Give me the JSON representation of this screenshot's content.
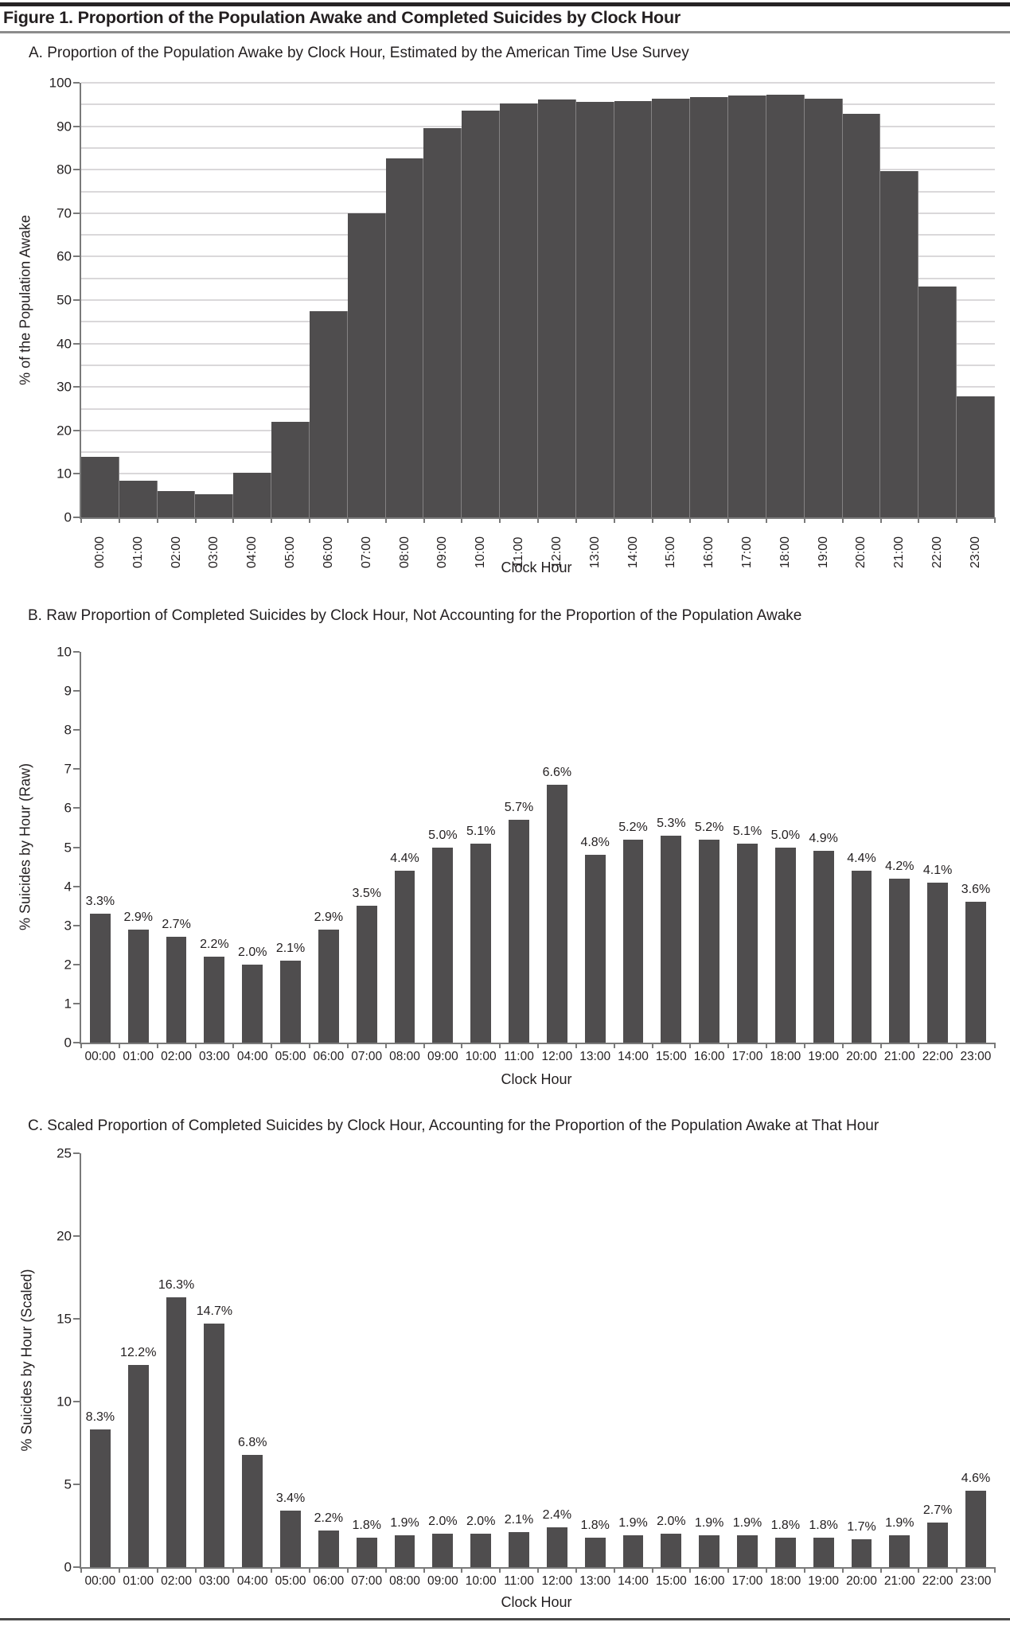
{
  "figure": {
    "title": "Figure 1. Proportion of the Population Awake and Completed Suicides by Clock Hour"
  },
  "colors": {
    "bar": "#4f4d4e",
    "grid": "#b4b0b4",
    "axis": "#7a7a7a",
    "text": "#231f20"
  },
  "chart_data": [
    {
      "id": "A",
      "type": "bar",
      "title": "A. Proportion of the Population Awake by Clock Hour, Estimated by the American Time Use Survey",
      "xlabel": "Clock Hour",
      "ylabel": "% of the Population Awake",
      "ylim": [
        0,
        100
      ],
      "yticks": [
        0,
        10,
        20,
        30,
        40,
        50,
        60,
        70,
        80,
        90,
        100
      ],
      "grid": true,
      "grid_step": 5,
      "histogram": true,
      "x_tick_rotated": true,
      "legend": "none",
      "categories": [
        "00:00",
        "01:00",
        "02:00",
        "03:00",
        "04:00",
        "05:00",
        "06:00",
        "07:00",
        "08:00",
        "09:00",
        "10:00",
        "11:00",
        "12:00",
        "13:00",
        "14:00",
        "15:00",
        "16:00",
        "17:00",
        "18:00",
        "19:00",
        "20:00",
        "21:00",
        "22:00",
        "23:00"
      ],
      "values": [
        14.0,
        8.4,
        6.0,
        5.3,
        10.3,
        22.0,
        47.4,
        70.0,
        82.6,
        89.6,
        93.6,
        95.3,
        96.1,
        95.6,
        95.7,
        96.4,
        96.7,
        97.1,
        97.3,
        96.4,
        92.8,
        79.6,
        53.2,
        27.8
      ],
      "data_labels": null
    },
    {
      "id": "B",
      "type": "bar",
      "title": "B. Raw Proportion of Completed Suicides by Clock Hour, Not Accounting for the Proportion of the Population Awake",
      "xlabel": "Clock Hour",
      "ylabel": "% Suicides by Hour (Raw)",
      "ylim": [
        0,
        10
      ],
      "yticks": [
        0,
        1,
        2,
        3,
        4,
        5,
        6,
        7,
        8,
        9,
        10
      ],
      "grid": false,
      "histogram": false,
      "x_tick_rotated": false,
      "legend": "none",
      "categories": [
        "00:00",
        "01:00",
        "02:00",
        "03:00",
        "04:00",
        "05:00",
        "06:00",
        "07:00",
        "08:00",
        "09:00",
        "10:00",
        "11:00",
        "12:00",
        "13:00",
        "14:00",
        "15:00",
        "16:00",
        "17:00",
        "18:00",
        "19:00",
        "20:00",
        "21:00",
        "22:00",
        "23:00"
      ],
      "values": [
        3.3,
        2.9,
        2.7,
        2.2,
        2.0,
        2.1,
        2.9,
        3.5,
        4.4,
        5.0,
        5.1,
        5.7,
        6.6,
        4.8,
        5.2,
        5.3,
        5.2,
        5.1,
        5.0,
        4.9,
        4.4,
        4.2,
        4.1,
        3.6
      ],
      "data_labels": [
        "3.3%",
        "2.9%",
        "2.7%",
        "2.2%",
        "2.0%",
        "2.1%",
        "2.9%",
        "3.5%",
        "4.4%",
        "5.0%",
        "5.1%",
        "5.7%",
        "6.6%",
        "4.8%",
        "5.2%",
        "5.3%",
        "5.2%",
        "5.1%",
        "5.0%",
        "4.9%",
        "4.4%",
        "4.2%",
        "4.1%",
        "3.6%"
      ]
    },
    {
      "id": "C",
      "type": "bar",
      "title": "C. Scaled Proportion of Completed Suicides by Clock Hour, Accounting for the Proportion of the Population Awake at That Hour",
      "xlabel": "Clock Hour",
      "ylabel": "% Suicides by Hour (Scaled)",
      "ylim": [
        0,
        25
      ],
      "yticks": [
        0,
        5,
        10,
        15,
        20,
        25
      ],
      "grid": false,
      "histogram": false,
      "x_tick_rotated": false,
      "legend": "none",
      "categories": [
        "00:00",
        "01:00",
        "02:00",
        "03:00",
        "04:00",
        "05:00",
        "06:00",
        "07:00",
        "08:00",
        "09:00",
        "10:00",
        "11:00",
        "12:00",
        "13:00",
        "14:00",
        "15:00",
        "16:00",
        "17:00",
        "18:00",
        "19:00",
        "20:00",
        "21:00",
        "22:00",
        "23:00"
      ],
      "values": [
        8.3,
        12.2,
        16.3,
        14.7,
        6.8,
        3.4,
        2.2,
        1.8,
        1.9,
        2.0,
        2.0,
        2.1,
        2.4,
        1.8,
        1.9,
        2.0,
        1.9,
        1.9,
        1.8,
        1.8,
        1.7,
        1.9,
        2.7,
        4.6
      ],
      "data_labels": [
        "8.3%",
        "12.2%",
        "16.3%",
        "14.7%",
        "6.8%",
        "3.4%",
        "2.2%",
        "1.8%",
        "1.9%",
        "2.0%",
        "2.0%",
        "2.1%",
        "2.4%",
        "1.8%",
        "1.9%",
        "2.0%",
        "1.9%",
        "1.9%",
        "1.8%",
        "1.8%",
        "1.7%",
        "1.9%",
        "2.7%",
        "4.6%"
      ]
    }
  ]
}
